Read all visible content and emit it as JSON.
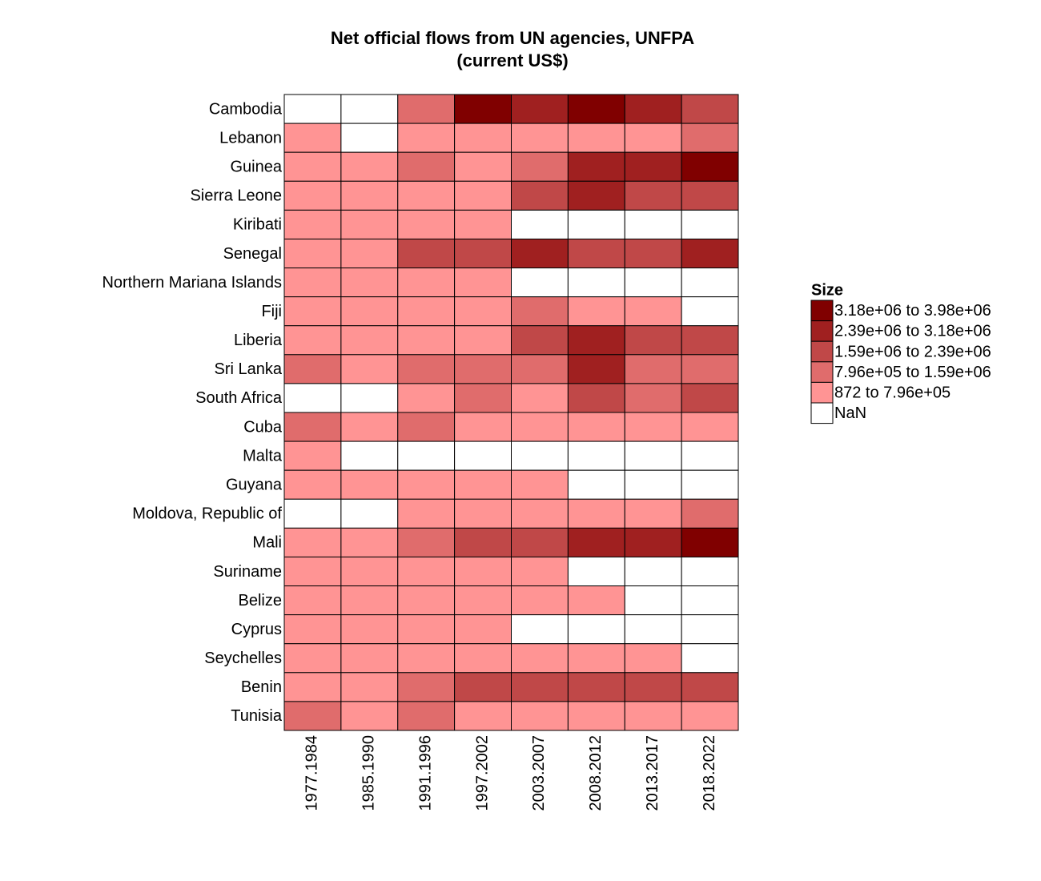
{
  "chart_data": {
    "type": "heatmap",
    "title": "Net official flows from UN agencies, UNFPA",
    "subtitle": "(current US$)",
    "x": [
      "1977.1984",
      "1985.1990",
      "1991.1996",
      "1997.2002",
      "2003.2007",
      "2008.2012",
      "2013.2017",
      "2018.2022"
    ],
    "y": [
      "Cambodia",
      "Lebanon",
      "Guinea",
      "Sierra Leone",
      "Kiribati",
      "Senegal",
      "Northern Mariana Islands",
      "Fiji",
      "Liberia",
      "Sri Lanka",
      "South Africa",
      "Cuba",
      "Malta",
      "Guyana",
      "Moldova, Republic of",
      "Mali",
      "Suriname",
      "Belize",
      "Cyprus",
      "Seychelles",
      "Benin",
      "Tunisia"
    ],
    "values": [
      [
        null,
        null,
        1200000,
        3600000,
        2800000,
        3600000,
        2800000,
        2000000
      ],
      [
        400000,
        null,
        400000,
        400000,
        400000,
        400000,
        400000,
        1200000
      ],
      [
        400000,
        400000,
        1200000,
        400000,
        1200000,
        2800000,
        2800000,
        3600000
      ],
      [
        400000,
        400000,
        400000,
        400000,
        2000000,
        2800000,
        2000000,
        2000000
      ],
      [
        400000,
        400000,
        400000,
        400000,
        null,
        null,
        null,
        null
      ],
      [
        400000,
        400000,
        2000000,
        2000000,
        2800000,
        2000000,
        2000000,
        2800000
      ],
      [
        400000,
        400000,
        400000,
        400000,
        null,
        null,
        null,
        null
      ],
      [
        400000,
        400000,
        400000,
        400000,
        1200000,
        400000,
        400000,
        null
      ],
      [
        400000,
        400000,
        400000,
        400000,
        2000000,
        2800000,
        2000000,
        2000000
      ],
      [
        1200000,
        400000,
        1200000,
        1200000,
        1200000,
        2800000,
        1200000,
        1200000
      ],
      [
        null,
        null,
        400000,
        1200000,
        400000,
        2000000,
        1200000,
        2000000
      ],
      [
        1200000,
        400000,
        1200000,
        400000,
        400000,
        400000,
        400000,
        400000
      ],
      [
        400000,
        null,
        null,
        null,
        null,
        null,
        null,
        null
      ],
      [
        400000,
        400000,
        400000,
        400000,
        400000,
        null,
        null,
        null
      ],
      [
        null,
        null,
        400000,
        400000,
        400000,
        400000,
        400000,
        1200000
      ],
      [
        400000,
        400000,
        1200000,
        2000000,
        2000000,
        2800000,
        2800000,
        3600000
      ],
      [
        400000,
        400000,
        400000,
        400000,
        400000,
        null,
        null,
        null
      ],
      [
        400000,
        400000,
        400000,
        400000,
        400000,
        400000,
        null,
        null
      ],
      [
        400000,
        400000,
        400000,
        400000,
        null,
        null,
        null,
        null
      ],
      [
        400000,
        400000,
        400000,
        400000,
        400000,
        400000,
        400000,
        null
      ],
      [
        400000,
        400000,
        1200000,
        2000000,
        2000000,
        2000000,
        2000000,
        2000000
      ],
      [
        1200000,
        400000,
        1200000,
        400000,
        400000,
        400000,
        400000,
        400000
      ]
    ],
    "legend": {
      "title": "Size",
      "entries": [
        {
          "label": "3.18e+06 to 3.98e+06",
          "color": "#800000",
          "range": [
            3180000,
            3980000
          ]
        },
        {
          "label": "2.39e+06 to 3.18e+06",
          "color": "#a02020",
          "range": [
            2390000,
            3180000
          ]
        },
        {
          "label": "1.59e+06 to 2.39e+06",
          "color": "#c04848",
          "range": [
            1590000,
            2390000
          ]
        },
        {
          "label": "7.96e+05 to 1.59e+06",
          "color": "#e06c6c",
          "range": [
            796000,
            1590000
          ]
        },
        {
          "label": "872 to 7.96e+05",
          "color": "#ff9494",
          "range": [
            872,
            796000
          ]
        },
        {
          "label": "NaN",
          "color": "#ffffff"
        }
      ]
    }
  }
}
